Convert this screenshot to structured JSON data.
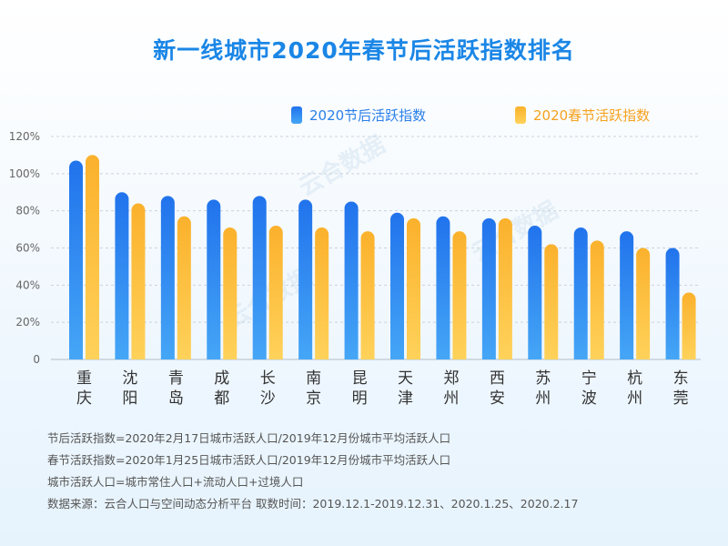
{
  "title": "新一线城市2020年春节后活跃指数排名",
  "legend": {
    "after": "2020节后活跃指数",
    "spring": "2020春节活跃指数"
  },
  "colors": {
    "title": "#1a86e6",
    "after_top": "#2173ec",
    "after_bottom": "#45a6f6",
    "spring_top": "#fbb12c",
    "spring_bottom": "#ffd25a",
    "grid": "#c9d3dc"
  },
  "watermark": "云合数据",
  "chart_data": {
    "type": "bar",
    "categories": [
      "重庆",
      "沈阳",
      "青岛",
      "成都",
      "长沙",
      "南京",
      "昆明",
      "天津",
      "郑州",
      "西安",
      "苏州",
      "宁波",
      "杭州",
      "东莞"
    ],
    "series": [
      {
        "name": "2020节后活跃指数",
        "values": [
          107,
          90,
          88,
          86,
          88,
          86,
          85,
          79,
          77,
          76,
          72,
          71,
          69,
          60
        ]
      },
      {
        "name": "2020春节活跃指数",
        "values": [
          110,
          84,
          77,
          71,
          72,
          71,
          69,
          76,
          69,
          76,
          62,
          64,
          60,
          36
        ]
      }
    ],
    "yticks": [
      "0",
      "20%",
      "40%",
      "60%",
      "80%",
      "100%",
      "120%"
    ],
    "ylim": [
      0,
      120
    ],
    "grid": true,
    "legend_position": "top"
  },
  "notes": [
    "节后活跃指数=2020年2月17日城市活跃人口/2019年12月份城市平均活跃人口",
    "春节活跃指数=2020年1月25日城市活跃人口/2019年12月份城市平均活跃人口",
    "城市活跃人口=城市常住人口+流动人口+过境人口",
    "数据来源：云合人口与空间动态分析平台 取数时间：2019.12.1-2019.12.31、2020.1.25、2020.2.17"
  ]
}
